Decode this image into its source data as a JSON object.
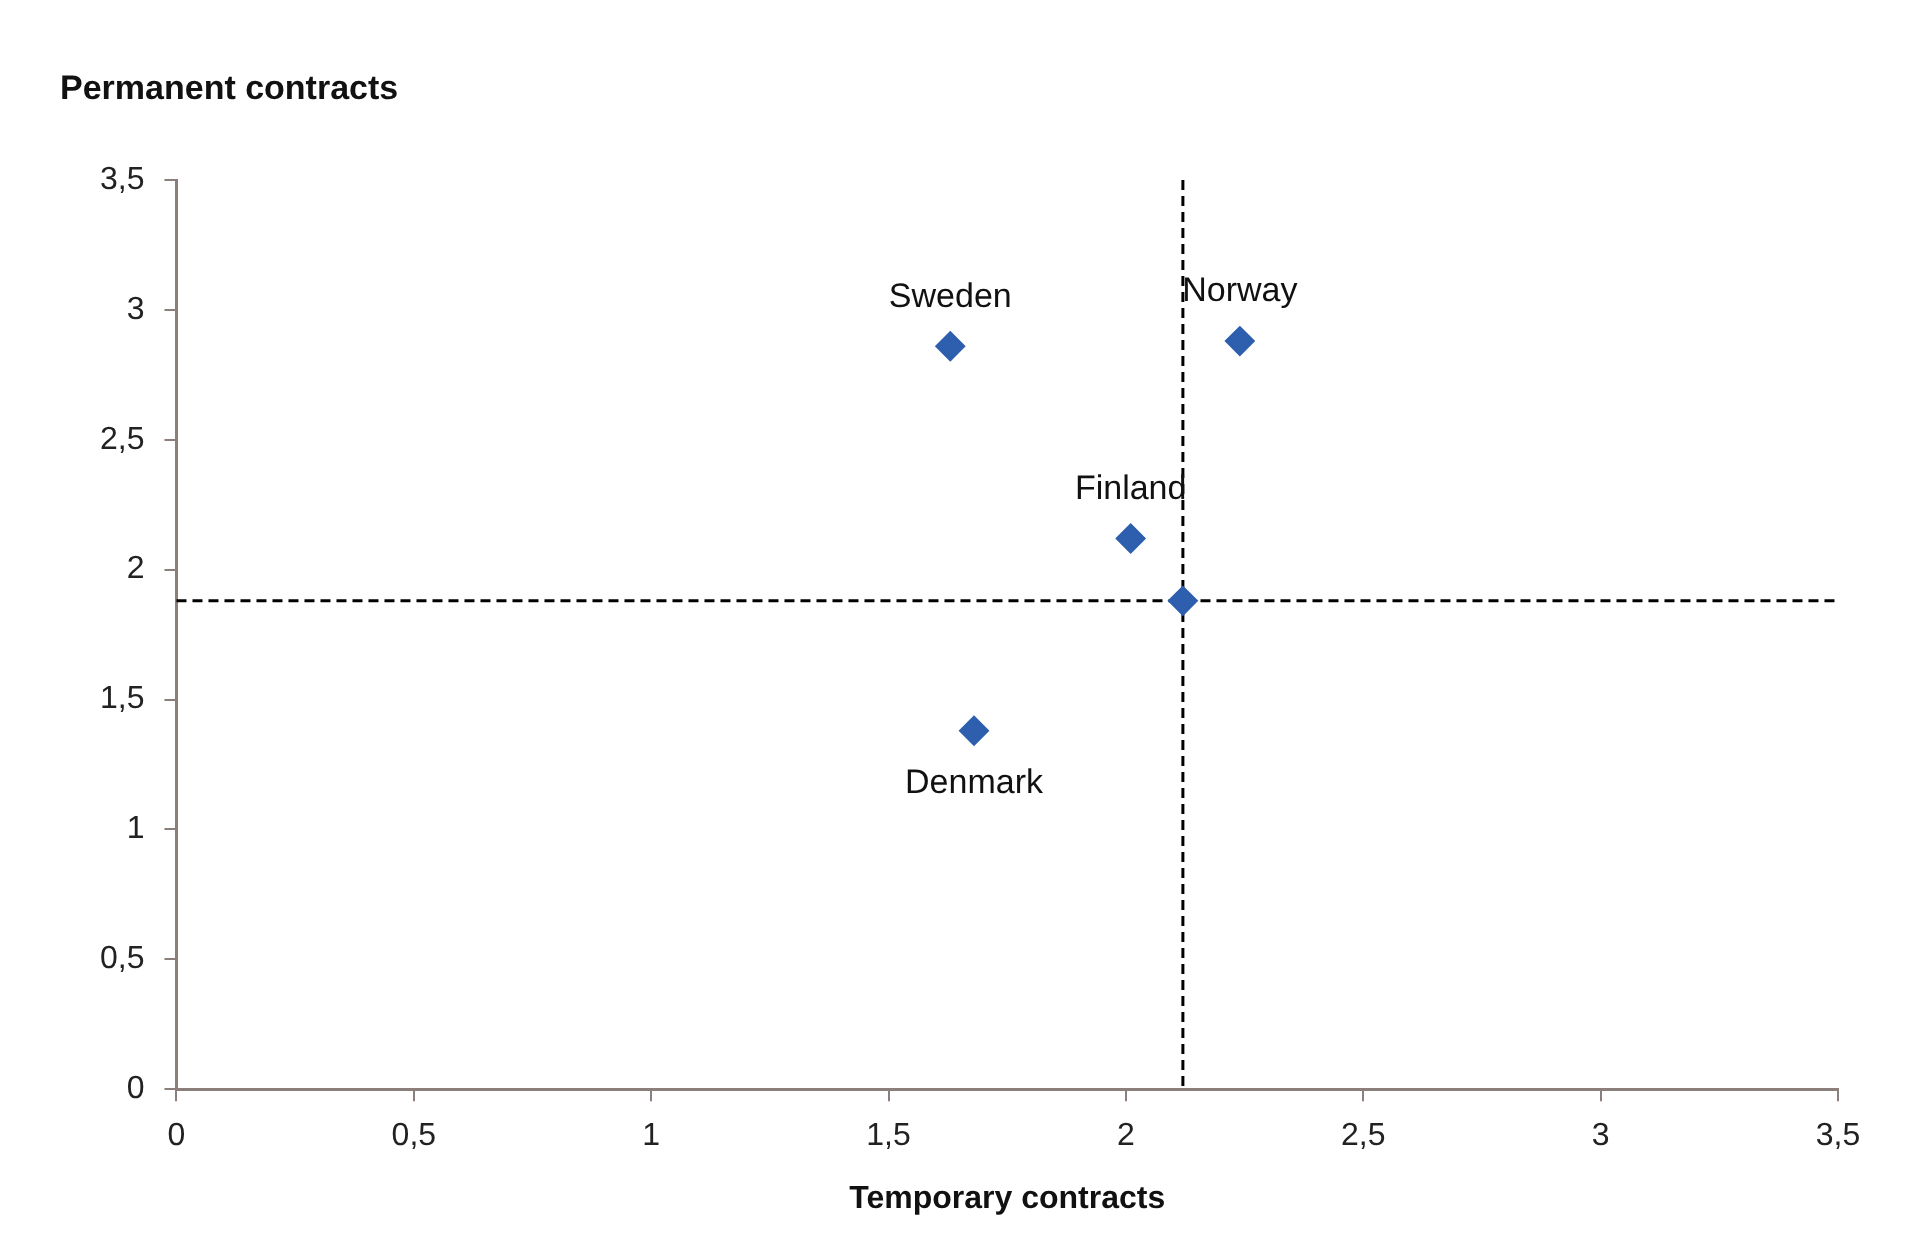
{
  "chart_data": {
    "type": "scatter",
    "xlabel": "Temporary contracts",
    "ylabel": "Permanent contracts",
    "x": [
      1.63,
      2.24,
      2.01,
      2.12,
      1.68
    ],
    "series": [
      {
        "color": "#2e5fae",
        "values": [
          2.86,
          2.88,
          2.12,
          1.88,
          1.38
        ]
      }
    ],
    "xlim": [
      0,
      3.5
    ],
    "ylim": [
      0,
      3.5
    ],
    "xticks": [
      0,
      {
        "value": 0.5,
        "label": "0,5"
      },
      1,
      {
        "value": 1.5,
        "label": "1,5"
      },
      2,
      {
        "value": 2.5,
        "label": "2,5"
      },
      3,
      {
        "value": 3.5,
        "label": "3,5"
      }
    ],
    "yticks": [
      0,
      {
        "value": 0.5,
        "label": "0,5"
      },
      1,
      {
        "value": 1.5,
        "label": "1,5"
      },
      2,
      {
        "value": 2.5,
        "label": "2,5"
      },
      3,
      {
        "value": 3.5,
        "label": "3,5"
      }
    ],
    "ref_lines": [
      {
        "axis": "y",
        "value": 1.88,
        "color": "#000000",
        "line_style": "dashed"
      },
      {
        "axis": "x",
        "value": 2.12,
        "color": "#000000",
        "line_style": "dashed"
      }
    ],
    "annotations": [
      {
        "text": "Sweden",
        "x": 1.63,
        "y": 2.86
      },
      {
        "text": "Norway",
        "x": 2.24,
        "y": 2.88
      },
      {
        "text": "Finland",
        "x": 2.01,
        "y": 2.12
      },
      {
        "text": "Denmark",
        "x": 1.68,
        "y": 1.38
      }
    ],
    "marker": "diamond",
    "grid": false,
    "legend": false
  }
}
